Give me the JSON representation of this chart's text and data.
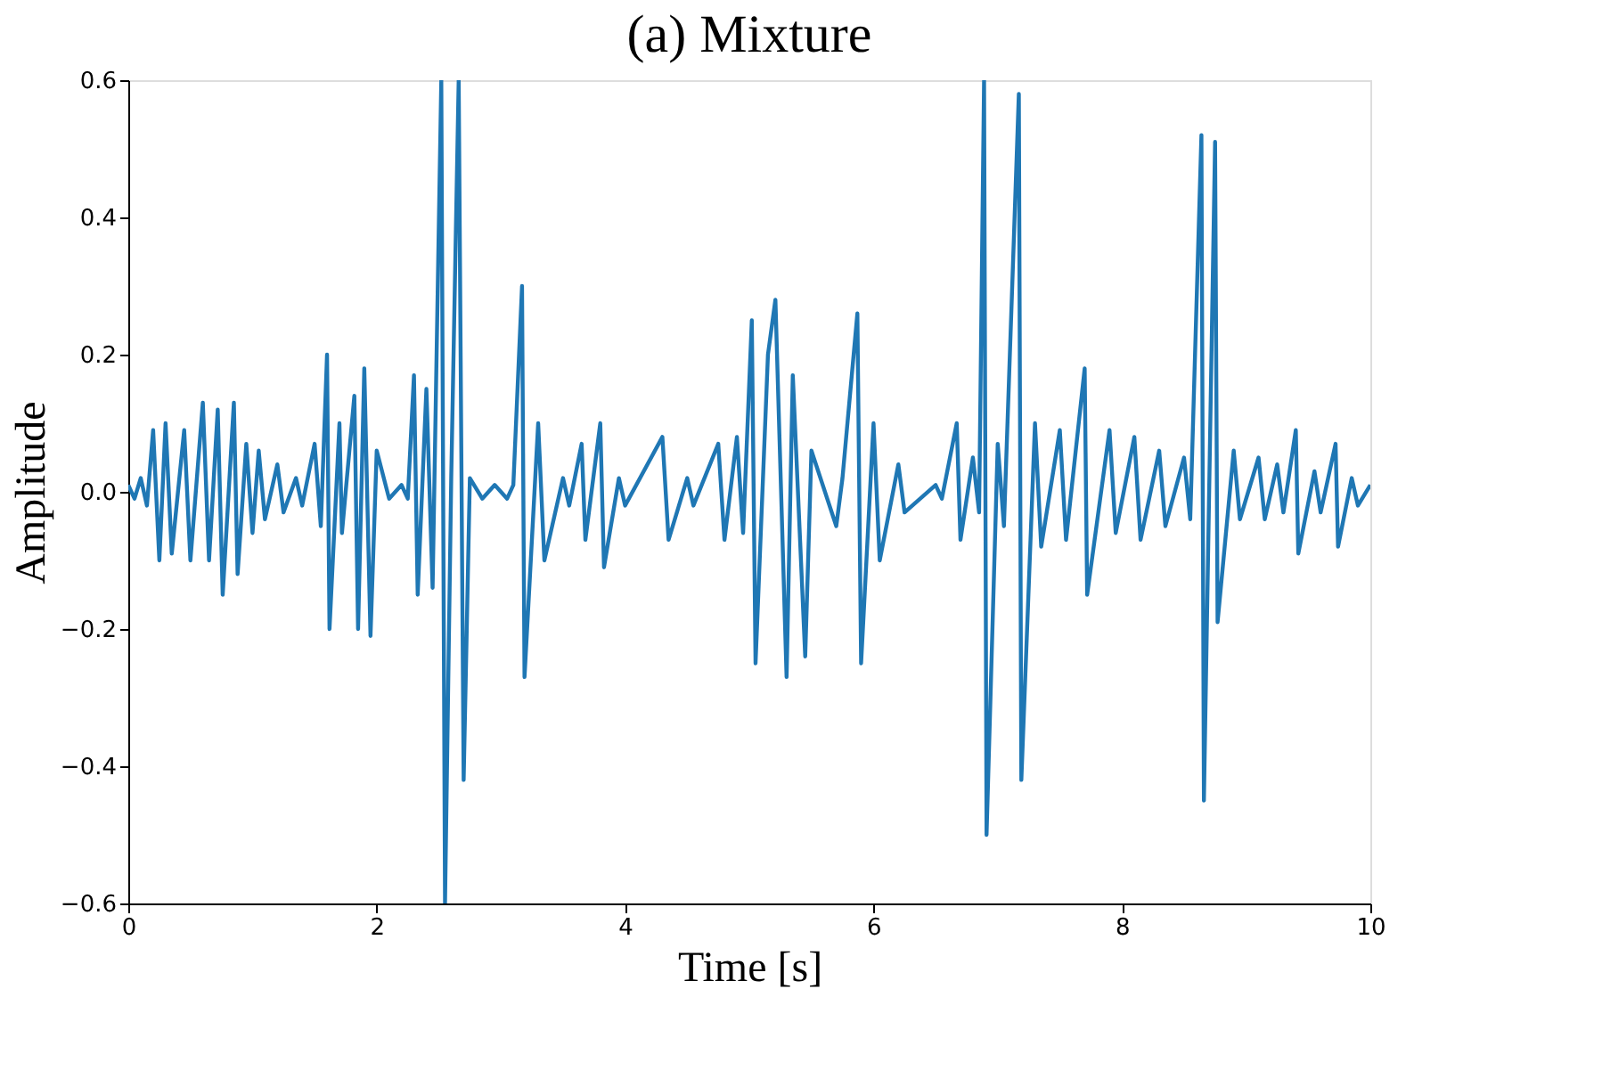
{
  "chart_data": {
    "type": "line",
    "title": "(a) Mixture",
    "xlabel": "Time [s]",
    "ylabel": "Amplitude",
    "x": [
      0,
      0.05,
      0.1,
      0.15,
      0.2,
      0.25,
      0.3,
      0.35,
      0.45,
      0.5,
      0.6,
      0.65,
      0.72,
      0.76,
      0.85,
      0.88,
      0.95,
      1.0,
      1.05,
      1.1,
      1.2,
      1.25,
      1.35,
      1.4,
      1.5,
      1.55,
      1.6,
      1.62,
      1.7,
      1.72,
      1.82,
      1.85,
      1.9,
      1.95,
      2.0,
      2.1,
      2.2,
      2.25,
      2.3,
      2.33,
      2.4,
      2.45,
      2.52,
      2.55,
      2.6,
      2.66,
      2.7,
      2.75,
      2.85,
      2.95,
      3.05,
      3.1,
      3.17,
      3.19,
      3.3,
      3.35,
      3.5,
      3.55,
      3.65,
      3.68,
      3.8,
      3.83,
      3.95,
      4.0,
      4.3,
      4.35,
      4.5,
      4.55,
      4.75,
      4.8,
      4.9,
      4.95,
      5.02,
      5.05,
      5.15,
      5.21,
      5.3,
      5.35,
      5.45,
      5.5,
      5.7,
      5.75,
      5.87,
      5.9,
      6.0,
      6.05,
      6.2,
      6.25,
      6.5,
      6.55,
      6.67,
      6.7,
      6.8,
      6.85,
      6.89,
      6.91,
      7.0,
      7.05,
      7.17,
      7.19,
      7.3,
      7.35,
      7.5,
      7.55,
      7.7,
      7.72,
      7.9,
      7.95,
      8.1,
      8.15,
      8.3,
      8.35,
      8.5,
      8.55,
      8.64,
      8.66,
      8.75,
      8.77,
      8.9,
      8.95,
      9.1,
      9.15,
      9.25,
      9.3,
      9.4,
      9.42,
      9.55,
      9.6,
      9.72,
      9.74,
      9.85,
      9.9,
      10
    ],
    "values": [
      0.01,
      -0.01,
      0.02,
      -0.02,
      0.09,
      -0.1,
      0.1,
      -0.09,
      0.09,
      -0.1,
      0.13,
      -0.1,
      0.12,
      -0.15,
      0.13,
      -0.12,
      0.07,
      -0.06,
      0.06,
      -0.04,
      0.04,
      -0.03,
      0.02,
      -0.02,
      0.07,
      -0.05,
      0.2,
      -0.2,
      0.1,
      -0.06,
      0.14,
      -0.2,
      0.18,
      -0.21,
      0.06,
      -0.01,
      0.01,
      -0.01,
      0.17,
      -0.15,
      0.15,
      -0.14,
      0.6,
      -0.6,
      0.02,
      0.6,
      -0.42,
      0.02,
      -0.01,
      0.01,
      -0.01,
      0.01,
      0.3,
      -0.27,
      0.1,
      -0.1,
      0.02,
      -0.02,
      0.07,
      -0.07,
      0.1,
      -0.11,
      0.02,
      -0.02,
      0.08,
      -0.07,
      0.02,
      -0.02,
      0.07,
      -0.07,
      0.08,
      -0.06,
      0.25,
      -0.25,
      0.2,
      0.28,
      -0.27,
      0.17,
      -0.24,
      0.06,
      -0.05,
      0.02,
      0.26,
      -0.25,
      0.1,
      -0.1,
      0.04,
      -0.03,
      0.01,
      -0.01,
      0.1,
      -0.07,
      0.05,
      -0.03,
      0.6,
      -0.5,
      0.07,
      -0.05,
      0.58,
      -0.42,
      0.1,
      -0.08,
      0.09,
      -0.07,
      0.18,
      -0.15,
      0.09,
      -0.06,
      0.08,
      -0.07,
      0.06,
      -0.05,
      0.05,
      -0.04,
      0.52,
      -0.45,
      0.51,
      -0.19,
      0.06,
      -0.04,
      0.05,
      -0.04,
      0.04,
      -0.03,
      0.09,
      -0.09,
      0.03,
      -0.03,
      0.07,
      -0.08,
      0.02,
      -0.02,
      0.01
    ],
    "color": "#1f77b4",
    "xlim": [
      0,
      10
    ],
    "ylim": [
      -0.6,
      0.6
    ],
    "xticks": [
      0,
      2,
      4,
      6,
      8,
      10
    ],
    "yticks": [
      -0.6,
      -0.4,
      -0.2,
      {
        "value": 0,
        "label": "0.0"
      },
      0.2,
      0.4,
      0.6
    ],
    "grid": false,
    "line_style": "solid"
  }
}
